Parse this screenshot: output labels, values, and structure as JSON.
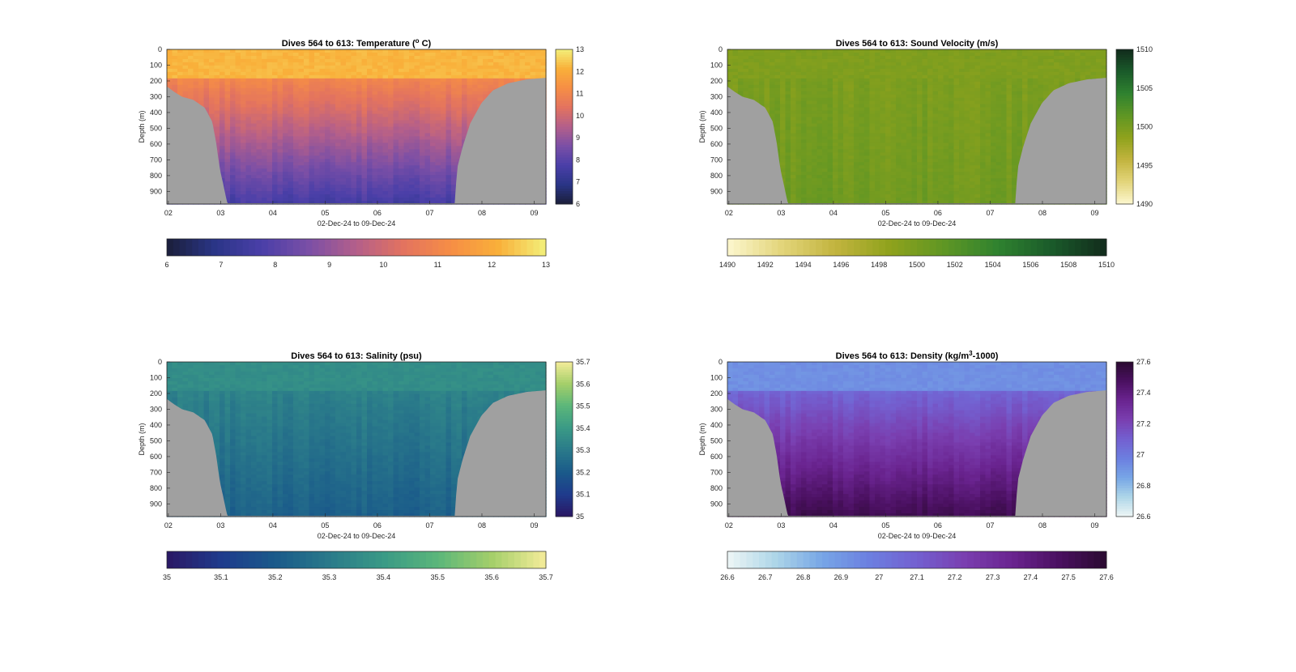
{
  "chart_data": [
    {
      "type": "heatmap",
      "title_main": "Dives 564 to 613: Temperature (",
      "title_sup": "o",
      "title_tail": " C)",
      "xlabel": "02-Dec-24 to 09-Dec-24",
      "ylabel": "Depth (m)",
      "x_tick_labels": [
        "02",
        "03",
        "04",
        "05",
        "06",
        "07",
        "08",
        "09"
      ],
      "y_tick_labels": [
        "0",
        "100",
        "200",
        "300",
        "400",
        "500",
        "600",
        "700",
        "800",
        "900"
      ],
      "ylim": [
        0,
        980
      ],
      "colorbar_ticks": [
        "13",
        "12",
        "11",
        "10",
        "9",
        "8",
        "7",
        "6"
      ],
      "hbar_ticks": [
        "6",
        "7",
        "8",
        "9",
        "10",
        "11",
        "12",
        "13"
      ],
      "value_range": [
        6,
        13
      ],
      "surface_value": 12.2,
      "bottom_value": 7.6,
      "colormap": [
        "#1b1f3a",
        "#2a3586",
        "#4a3fa8",
        "#7b4fa6",
        "#b45f8a",
        "#e3735f",
        "#f68e45",
        "#f9b03a",
        "#f3f07a"
      ],
      "bathymetry_color": "#a0a0a0"
    },
    {
      "type": "heatmap",
      "title_main": "Dives 564 to 613: Sound Velocity (m/s)",
      "title_sup": "",
      "title_tail": "",
      "xlabel": "02-Dec-24 to 09-Dec-24",
      "ylabel": "Depth (m)",
      "x_tick_labels": [
        "02",
        "03",
        "04",
        "05",
        "06",
        "07",
        "08",
        "09"
      ],
      "y_tick_labels": [
        "0",
        "100",
        "200",
        "300",
        "400",
        "500",
        "600",
        "700",
        "800",
        "900"
      ],
      "ylim": [
        0,
        980
      ],
      "colorbar_ticks": [
        "1510",
        "1505",
        "1500",
        "1495",
        "1490"
      ],
      "hbar_ticks": [
        "1490",
        "1492",
        "1494",
        "1496",
        "1498",
        "1500",
        "1502",
        "1504",
        "1506",
        "1508",
        "1510"
      ],
      "value_range": [
        1490,
        1510
      ],
      "surface_value": 1499.5,
      "bottom_value": 1500.5,
      "colormap": [
        "#fdf7cf",
        "#e3d57a",
        "#c2b43e",
        "#8fa21c",
        "#5f9624",
        "#2f822f",
        "#1a5a2a",
        "#122b1c"
      ],
      "bathymetry_color": "#a0a0a0"
    },
    {
      "type": "heatmap",
      "title_main": "Dives 564 to 613: Salinity (psu)",
      "title_sup": "",
      "title_tail": "",
      "xlabel": "02-Dec-24 to 09-Dec-24",
      "ylabel": "Depth (m)",
      "x_tick_labels": [
        "02",
        "03",
        "04",
        "05",
        "06",
        "07",
        "08",
        "09"
      ],
      "y_tick_labels": [
        "0",
        "100",
        "200",
        "300",
        "400",
        "500",
        "600",
        "700",
        "800",
        "900"
      ],
      "ylim": [
        0,
        980
      ],
      "colorbar_ticks": [
        "35.7",
        "35.6",
        "35.5",
        "35.4",
        "35.3",
        "35.2",
        "35.1",
        "35"
      ],
      "hbar_ticks": [
        "35",
        "35.1",
        "35.2",
        "35.3",
        "35.4",
        "35.5",
        "35.6",
        "35.7"
      ],
      "value_range": [
        35,
        35.7
      ],
      "surface_value": 35.36,
      "bottom_value": 35.22,
      "colormap": [
        "#2a1764",
        "#1f3b8c",
        "#1a5a8a",
        "#2a7a8a",
        "#3a9a86",
        "#5bb67a",
        "#a4cf6a",
        "#f5ec9a"
      ],
      "bathymetry_color": "#a0a0a0"
    },
    {
      "type": "heatmap",
      "title_main": "Dives 564 to 613: Density (kg/m",
      "title_sup": "3",
      "title_tail": "-1000)",
      "xlabel": "02-Dec-24 to 09-Dec-24",
      "ylabel": "Depth (m)",
      "x_tick_labels": [
        "02",
        "03",
        "04",
        "05",
        "06",
        "07",
        "08",
        "09"
      ],
      "y_tick_labels": [
        "0",
        "100",
        "200",
        "300",
        "400",
        "500",
        "600",
        "700",
        "800",
        "900"
      ],
      "ylim": [
        0,
        980
      ],
      "colorbar_ticks": [
        "27.6",
        "27.4",
        "27.2",
        "27",
        "26.8",
        "26.6"
      ],
      "hbar_ticks": [
        "26.6",
        "26.7",
        "26.8",
        "26.9",
        "27",
        "27.1",
        "27.2",
        "27.3",
        "27.4",
        "27.5",
        "27.6"
      ],
      "value_range": [
        26.6,
        27.6
      ],
      "surface_value": 26.92,
      "bottom_value": 27.52,
      "colormap": [
        "#eef6f6",
        "#aed6e8",
        "#77a6e6",
        "#6c7fe0",
        "#7360d0",
        "#7a3fb0",
        "#6a2490",
        "#4a1060",
        "#2a0a30"
      ],
      "bathymetry_color": "#a0a0a0"
    }
  ]
}
